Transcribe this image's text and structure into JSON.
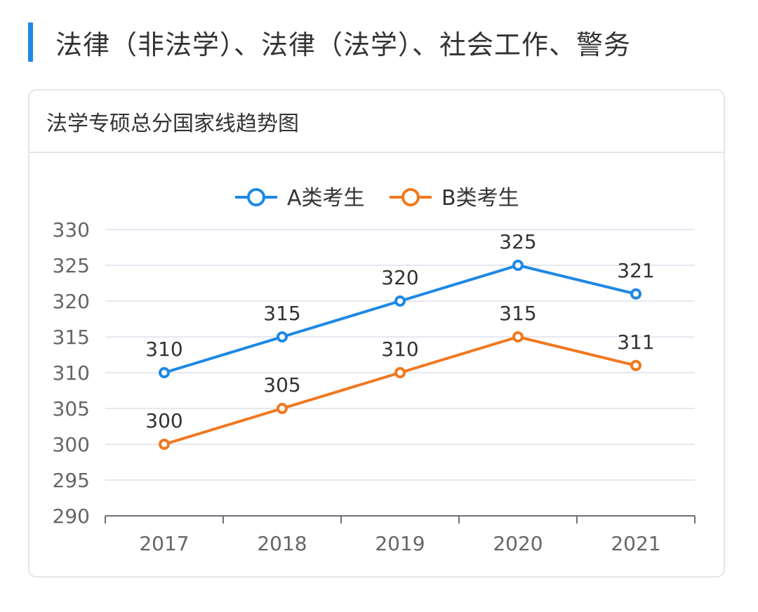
{
  "page": {
    "title": "法律（非法学）、法律（法学）、社会工作、警务",
    "accent_color": "#1e88e5"
  },
  "card": {
    "title": "法学专硕总分国家线趋势图"
  },
  "chart_data": {
    "type": "line",
    "title": "法学专硕总分国家线趋势图",
    "categories": [
      "2017",
      "2018",
      "2019",
      "2020",
      "2021"
    ],
    "series": [
      {
        "name": "A类考生",
        "values": [
          310,
          315,
          320,
          325,
          321
        ],
        "color": "#1e88e5"
      },
      {
        "name": "B类考生",
        "values": [
          300,
          305,
          310,
          315,
          311
        ],
        "color": "#f07820"
      }
    ],
    "ylim": [
      290,
      330
    ],
    "yticks": [
      290,
      295,
      300,
      305,
      310,
      315,
      320,
      325,
      330
    ],
    "grid": true,
    "legend": "top-center",
    "xlabel": "",
    "ylabel": ""
  }
}
